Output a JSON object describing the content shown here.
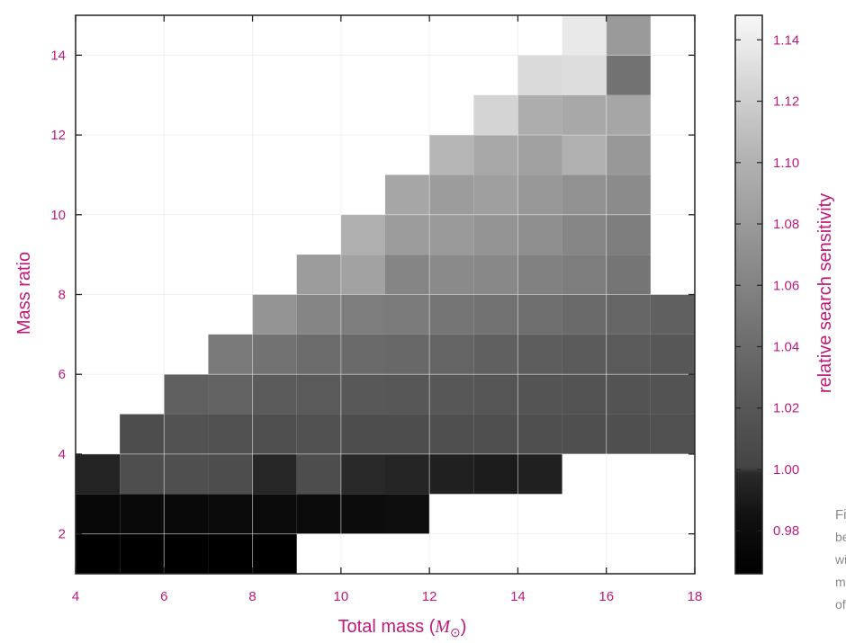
{
  "chart_data": {
    "type": "heatmap",
    "xlabel_text": "Total mass (",
    "xlabel_symbol": "M",
    "xlabel_sub": "⊙",
    "xlabel_close": ")",
    "ylabel": "Mass ratio",
    "colorbar_label": "relative search sensitivity",
    "colormap": "gray",
    "grid": true,
    "xlim": [
      4,
      18
    ],
    "ylim": [
      1,
      15
    ],
    "x_ticks": [
      4,
      6,
      8,
      10,
      12,
      14,
      16,
      18
    ],
    "y_ticks": [
      2,
      4,
      6,
      8,
      10,
      12,
      14
    ],
    "colorbar_range": [
      0.966,
      1.148
    ],
    "colorbar_ticks": [
      "0.98",
      "1.00",
      "1.02",
      "1.04",
      "1.06",
      "1.08",
      "1.10",
      "1.12",
      "1.14"
    ],
    "cells_note_units": "x = total mass bin start (M_sun, bin width 1), y = mass ratio bin start (bin width 1)",
    "rows": [
      {
        "y": 1,
        "x_start": 4,
        "values": [
          0.966,
          0.966,
          0.966,
          0.966,
          0.966
        ]
      },
      {
        "y": 2,
        "x_start": 4,
        "values": [
          0.975,
          0.976,
          0.976,
          0.977,
          0.977,
          0.978,
          0.98,
          0.982
        ]
      },
      {
        "y": 3,
        "x_start": 4,
        "values": [
          0.995,
          1.011,
          1.012,
          1.01,
          0.997,
          1.01,
          0.998,
          0.996,
          0.993,
          0.991,
          0.993
        ]
      },
      {
        "y": 4,
        "x_start": 5,
        "values": [
          1.01,
          1.015,
          1.013,
          1.012,
          1.013,
          1.01,
          1.01,
          1.012,
          1.012,
          1.012,
          1.012,
          1.012,
          1.013
        ]
      },
      {
        "y": 5,
        "x_start": 6,
        "values": [
          1.03,
          1.032,
          1.024,
          1.023,
          1.021,
          1.02,
          1.02,
          1.018,
          1.017,
          1.016,
          1.016,
          1.016
        ]
      },
      {
        "y": 6,
        "x_start": 7,
        "values": [
          1.052,
          1.045,
          1.04,
          1.038,
          1.037,
          1.033,
          1.03,
          1.027,
          1.025,
          1.023,
          1.02
        ]
      },
      {
        "y": 7,
        "x_start": 8,
        "values": [
          1.075,
          1.062,
          1.055,
          1.053,
          1.048,
          1.045,
          1.042,
          1.038,
          1.035,
          1.03
        ]
      },
      {
        "y": 8,
        "x_start": 9,
        "values": [
          1.082,
          1.087,
          1.062,
          1.066,
          1.064,
          1.058,
          1.055,
          1.048
        ]
      },
      {
        "y": 9,
        "x_start": 10,
        "values": [
          1.098,
          1.082,
          1.08,
          1.075,
          1.07,
          1.063,
          1.055
        ]
      },
      {
        "y": 10,
        "x_start": 11,
        "values": [
          1.09,
          1.082,
          1.084,
          1.078,
          1.072,
          1.067
        ]
      },
      {
        "y": 11,
        "x_start": 12,
        "values": [
          1.104,
          1.092,
          1.085,
          1.1,
          1.078
        ]
      },
      {
        "y": 12,
        "x_start": 13,
        "values": [
          1.124,
          1.096,
          1.092,
          1.09
        ]
      },
      {
        "y": 13,
        "x_start": 14,
        "values": [
          1.128,
          1.13,
          1.045
        ]
      },
      {
        "y": 14,
        "x_start": 15,
        "values": [
          1.138,
          1.08
        ]
      }
    ]
  },
  "caption_lines": [
    "Fi",
    "be",
    "wi",
    "m",
    "of"
  ]
}
